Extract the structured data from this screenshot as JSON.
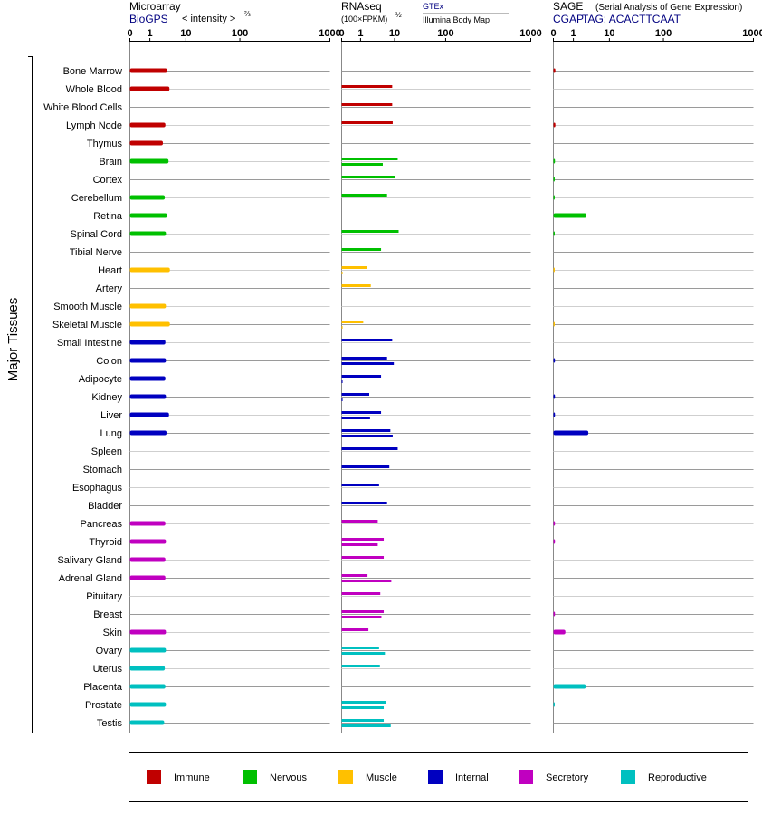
{
  "chart_data": {
    "type": "bar",
    "orientation": "horizontal",
    "y_axis_label": "Major Tissues",
    "categories": [
      "Bone Marrow",
      "Whole Blood",
      "White Blood Cells",
      "Lymph Node",
      "Thymus",
      "Brain",
      "Cortex",
      "Cerebellum",
      "Retina",
      "Spinal Cord",
      "Tibial Nerve",
      "Heart",
      "Artery",
      "Smooth Muscle",
      "Skeletal Muscle",
      "Small Intestine",
      "Colon",
      "Adipocyte",
      "Kidney",
      "Liver",
      "Lung",
      "Spleen",
      "Stomach",
      "Esophagus",
      "Bladder",
      "Pancreas",
      "Thyroid",
      "Salivary Gland",
      "Adrenal Gland",
      "Pituitary",
      "Breast",
      "Skin",
      "Ovary",
      "Uterus",
      "Placenta",
      "Prostate",
      "Testis"
    ],
    "category_group": [
      "immune",
      "immune",
      "immune",
      "immune",
      "immune",
      "nervous",
      "nervous",
      "nervous",
      "nervous",
      "nervous",
      "nervous",
      "muscle",
      "muscle",
      "muscle",
      "muscle",
      "internal",
      "internal",
      "internal",
      "internal",
      "internal",
      "internal",
      "internal",
      "internal",
      "internal",
      "internal",
      "secretory",
      "secretory",
      "secretory",
      "secretory",
      "secretory",
      "secretory",
      "secretory",
      "reproductive",
      "reproductive",
      "reproductive",
      "reproductive",
      "reproductive"
    ],
    "tick_labels": [
      "0",
      "1",
      "10",
      "100",
      "1000"
    ],
    "ticks": [
      0,
      1,
      10,
      100,
      1000
    ],
    "scale": "log-like",
    "xlim": [
      0,
      1000
    ],
    "panels": [
      {
        "id": "microarray",
        "title": "Microarray",
        "source": "BioGPS",
        "measure": "< intensity >",
        "measure_exp": "⅔",
        "series": [
          [
            3.0,
            null
          ],
          [
            3.5,
            null
          ],
          [
            null,
            null
          ],
          [
            2.7,
            null
          ],
          [
            2.3,
            null
          ],
          [
            3.3,
            null
          ],
          [
            null,
            null
          ],
          [
            2.6,
            null
          ],
          [
            3.0,
            null
          ],
          [
            2.8,
            null
          ],
          [
            null,
            null
          ],
          [
            3.6,
            null
          ],
          [
            null,
            null
          ],
          [
            2.8,
            null
          ],
          [
            3.6,
            null
          ],
          [
            2.7,
            null
          ],
          [
            2.8,
            null
          ],
          [
            2.7,
            null
          ],
          [
            2.8,
            null
          ],
          [
            3.4,
            null
          ],
          [
            2.9,
            null
          ],
          [
            null,
            null
          ],
          [
            null,
            null
          ],
          [
            null,
            null
          ],
          [
            null,
            null
          ],
          [
            2.7,
            null
          ],
          [
            2.8,
            null
          ],
          [
            2.7,
            null
          ],
          [
            2.7,
            null
          ],
          [
            null,
            null
          ],
          [
            null,
            null
          ],
          [
            2.8,
            null
          ],
          [
            2.8,
            null
          ],
          [
            2.6,
            null
          ],
          [
            2.7,
            null
          ],
          [
            2.8,
            null
          ],
          [
            2.5,
            null
          ]
        ]
      },
      {
        "id": "rnaseq",
        "title": "RNAseq",
        "measure": "(100×FPKM)",
        "measure_exp": "½",
        "legend_primary": "GTEx",
        "legend_secondary": "Illumina Body Map",
        "series": [
          [
            null,
            null
          ],
          [
            8.5,
            null
          ],
          [
            8.5,
            null
          ],
          [
            8.8,
            null
          ],
          [
            null,
            null
          ],
          [
            11.5,
            4.5
          ],
          [
            10.0,
            null
          ],
          [
            6.0,
            null
          ],
          [
            null,
            null
          ],
          [
            12.0,
            null
          ],
          [
            4.0,
            null
          ],
          [
            1.5,
            0.05
          ],
          [
            2.0,
            null
          ],
          [
            null,
            null
          ],
          [
            1.2,
            0.05
          ],
          [
            8.5,
            null
          ],
          [
            6.0,
            9.5
          ],
          [
            4.0,
            0.05
          ],
          [
            1.8,
            0.05
          ],
          [
            4.0,
            1.9
          ],
          [
            7.5,
            8.8
          ],
          [
            11.5,
            null
          ],
          [
            7.0,
            null
          ],
          [
            3.5,
            null
          ],
          [
            6.0,
            null
          ],
          [
            3.2,
            null
          ],
          [
            4.8,
            3.2
          ],
          [
            4.8,
            null
          ],
          [
            1.6,
            8.0
          ],
          [
            3.8,
            null
          ],
          [
            4.8,
            4.1
          ],
          [
            1.7,
            null
          ],
          [
            3.5,
            5.2
          ],
          [
            3.7,
            null
          ],
          [
            null,
            null
          ],
          [
            5.5,
            4.8
          ],
          [
            4.8,
            7.7
          ]
        ]
      },
      {
        "id": "sage",
        "title": "SAGE",
        "subtitle": "(Serial Analysis of Gene Expression)",
        "source": "CGAP",
        "tag_label": "TAG: ACACTTCAAT",
        "series": [
          [
            0.1,
            null
          ],
          [
            null,
            null
          ],
          [
            null,
            null
          ],
          [
            0.1,
            null
          ],
          [
            null,
            null
          ],
          [
            0.08,
            null
          ],
          [
            0.05,
            null
          ],
          [
            0.05,
            null
          ],
          [
            2.3,
            null
          ],
          [
            0.05,
            null
          ],
          [
            null,
            null
          ],
          [
            0.03,
            null
          ],
          [
            null,
            null
          ],
          [
            null,
            null
          ],
          [
            0.03,
            null
          ],
          [
            null,
            null
          ],
          [
            0.08,
            null
          ],
          [
            null,
            null
          ],
          [
            0.08,
            null
          ],
          [
            0.08,
            null
          ],
          [
            2.6,
            null
          ],
          [
            null,
            null
          ],
          [
            null,
            null
          ],
          [
            null,
            null
          ],
          [
            null,
            null
          ],
          [
            0.08,
            null
          ],
          [
            0.08,
            null
          ],
          [
            null,
            null
          ],
          [
            null,
            null
          ],
          [
            null,
            null
          ],
          [
            0.08,
            null
          ],
          [
            0.6,
            null
          ],
          [
            null,
            null
          ],
          [
            null,
            null
          ],
          [
            2.2,
            null
          ],
          [
            0.05,
            null
          ],
          [
            null,
            null
          ]
        ]
      }
    ],
    "legend": [
      {
        "key": "immune",
        "label": "Immune",
        "color": "#c00000"
      },
      {
        "key": "nervous",
        "label": "Nervous",
        "color": "#00c000"
      },
      {
        "key": "muscle",
        "label": "Muscle",
        "color": "#ffc000"
      },
      {
        "key": "internal",
        "label": "Internal",
        "color": "#0000c0"
      },
      {
        "key": "secretory",
        "label": "Secretory",
        "color": "#c000c0"
      },
      {
        "key": "reproductive",
        "label": "Reproductive",
        "color": "#00c0c0"
      }
    ],
    "text_color_title": "#000000",
    "text_color_source": "#000080"
  }
}
